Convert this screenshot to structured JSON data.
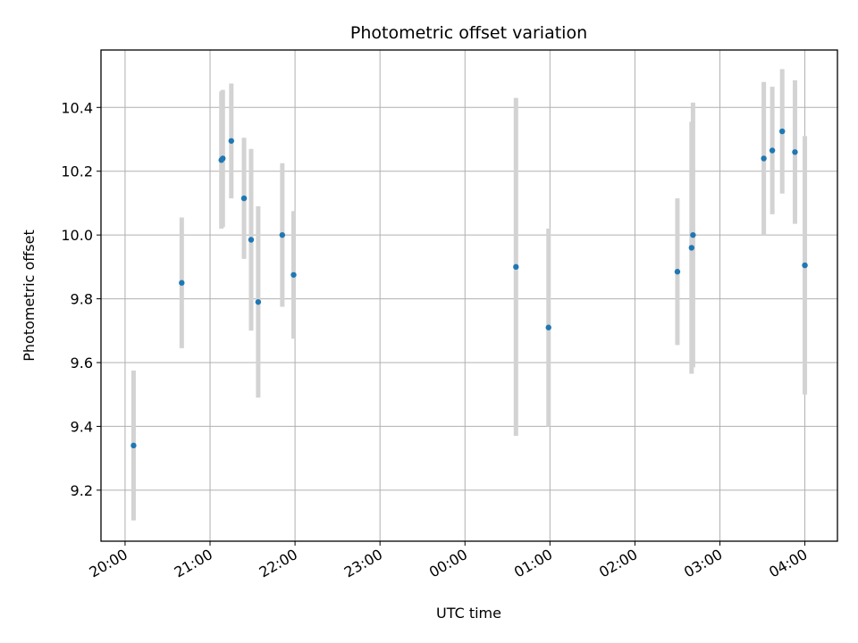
{
  "chart_data": {
    "type": "scatter",
    "title": "Photometric offset variation",
    "xlabel": "UTC time",
    "ylabel": "Photometric offset",
    "x_start_date": "2000-01-01",
    "xlim": [
      "2000-01-01T19:43:00",
      "2000-01-02T04:23:00"
    ],
    "ylim": [
      9.04,
      10.58
    ],
    "grid": true,
    "x_ticks": [
      {
        "t": "2000-01-01T20:00:00",
        "label": "20:00"
      },
      {
        "t": "2000-01-01T21:00:00",
        "label": "21:00"
      },
      {
        "t": "2000-01-01T22:00:00",
        "label": "22:00"
      },
      {
        "t": "2000-01-01T23:00:00",
        "label": "23:00"
      },
      {
        "t": "2000-01-02T00:00:00",
        "label": "00:00"
      },
      {
        "t": "2000-01-02T01:00:00",
        "label": "01:00"
      },
      {
        "t": "2000-01-02T02:00:00",
        "label": "02:00"
      },
      {
        "t": "2000-01-02T03:00:00",
        "label": "03:00"
      },
      {
        "t": "2000-01-02T04:00:00",
        "label": "04:00"
      }
    ],
    "y_ticks": [
      {
        "v": 9.2,
        "label": "9.2"
      },
      {
        "v": 9.4,
        "label": "9.4"
      },
      {
        "v": 9.6,
        "label": "9.6"
      },
      {
        "v": 9.8,
        "label": "9.8"
      },
      {
        "v": 10.0,
        "label": "10.0"
      },
      {
        "v": 10.2,
        "label": "10.2"
      },
      {
        "v": 10.4,
        "label": "10.4"
      }
    ],
    "point_color": "#1f77b4",
    "errorbar_color": "#d3d3d3",
    "points": [
      {
        "x": "2000-01-01T20:06:00",
        "y": 9.34,
        "err": 0.235
      },
      {
        "x": "2000-01-01T20:40:00",
        "y": 9.85,
        "err": 0.205
      },
      {
        "x": "2000-01-01T21:08:00",
        "y": 10.235,
        "err": 0.215
      },
      {
        "x": "2000-01-01T21:09:00",
        "y": 10.24,
        "err": 0.215
      },
      {
        "x": "2000-01-01T21:15:00",
        "y": 10.295,
        "err": 0.18
      },
      {
        "x": "2000-01-01T21:24:00",
        "y": 10.115,
        "err": 0.19
      },
      {
        "x": "2000-01-01T21:29:00",
        "y": 9.985,
        "err": 0.285
      },
      {
        "x": "2000-01-01T21:34:00",
        "y": 9.79,
        "err": 0.3
      },
      {
        "x": "2000-01-01T21:51:00",
        "y": 10.0,
        "err": 0.225
      },
      {
        "x": "2000-01-01T21:59:00",
        "y": 9.875,
        "err": 0.2
      },
      {
        "x": "2000-01-02T00:36:00",
        "y": 9.9,
        "err": 0.53
      },
      {
        "x": "2000-01-02T00:59:00",
        "y": 9.71,
        "err": 0.31
      },
      {
        "x": "2000-01-02T02:30:00",
        "y": 9.885,
        "err": 0.23
      },
      {
        "x": "2000-01-02T02:40:00",
        "y": 9.96,
        "err": 0.395
      },
      {
        "x": "2000-01-02T02:41:00",
        "y": 10.0,
        "err": 0.415
      },
      {
        "x": "2000-01-02T03:31:00",
        "y": 10.24,
        "err": 0.24
      },
      {
        "x": "2000-01-02T03:37:00",
        "y": 10.265,
        "err": 0.2
      },
      {
        "x": "2000-01-02T03:44:00",
        "y": 10.325,
        "err": 0.195
      },
      {
        "x": "2000-01-02T03:53:00",
        "y": 10.26,
        "err": 0.225
      },
      {
        "x": "2000-01-02T04:00:00",
        "y": 9.905,
        "err": 0.405
      }
    ]
  }
}
